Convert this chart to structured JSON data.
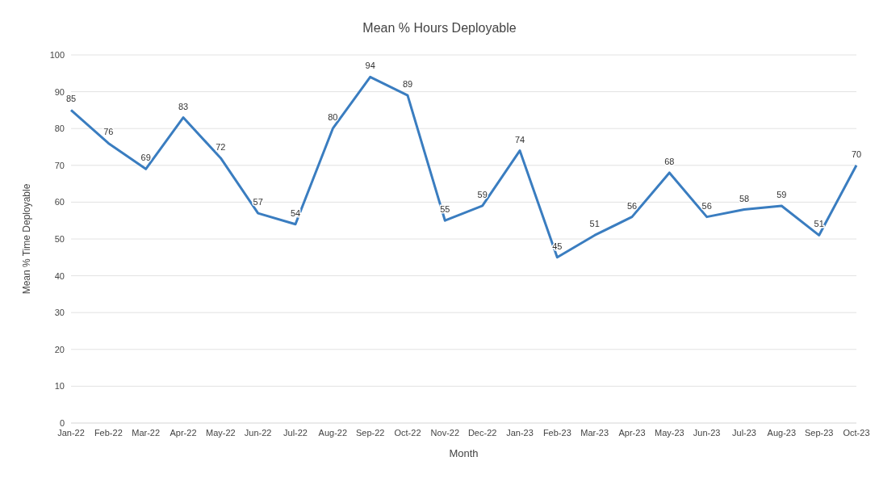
{
  "chart_data": {
    "type": "line",
    "title": "Mean % Hours Deployable",
    "xlabel": "Month",
    "ylabel": "Mean % Time Deployable",
    "categories": [
      "Jan-22",
      "Feb-22",
      "Mar-22",
      "Apr-22",
      "May-22",
      "Jun-22",
      "Jul-22",
      "Aug-22",
      "Sep-22",
      "Oct-22",
      "Nov-22",
      "Dec-22",
      "Jan-23",
      "Feb-23",
      "Mar-23",
      "Apr-23",
      "May-23",
      "Jun-23",
      "Jul-23",
      "Aug-23",
      "Sep-23",
      "Oct-23"
    ],
    "values": [
      85,
      76,
      69,
      83,
      72,
      57,
      54,
      80,
      94,
      89,
      55,
      59,
      74,
      45,
      51,
      56,
      68,
      56,
      58,
      59,
      51,
      70
    ],
    "color": "#3a7dc0",
    "ylim": [
      0,
      100
    ],
    "yticks": [
      0,
      10,
      20,
      30,
      40,
      50,
      60,
      70,
      80,
      90,
      100
    ],
    "grid": "y",
    "data_labels": true,
    "marker": "none",
    "line_style": "solid"
  }
}
